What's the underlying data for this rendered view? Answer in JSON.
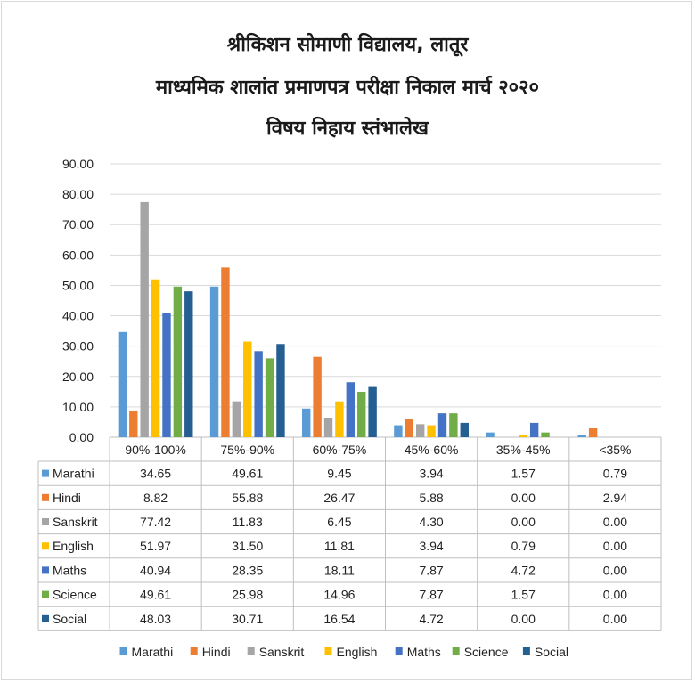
{
  "title_lines": [
    "श्रीकिशन सोमाणी विद्यालय, लातूर",
    "माध्यमिक शालांत प्रमाणपत्र परीक्षा निकाल मार्च २०२०",
    "विषय निहाय स्तंभालेख"
  ],
  "chart_data": {
    "type": "bar",
    "title": "श्रीकिशन सोमाणी विद्यालय, लातूर / माध्यमिक शालांत प्रमाणपत्र परीक्षा निकाल मार्च २०२० / विषय निहाय स्तंभालेख",
    "categories": [
      "90%-100%",
      "75%-90%",
      "60%-75%",
      "45%-60%",
      "35%-45%",
      "<35%"
    ],
    "series": [
      {
        "name": "Marathi",
        "color": "#5b9bd5",
        "values": [
          34.65,
          49.61,
          9.45,
          3.94,
          1.57,
          0.79
        ]
      },
      {
        "name": "Hindi",
        "color": "#ed7d31",
        "values": [
          8.82,
          55.88,
          26.47,
          5.88,
          0.0,
          2.94
        ]
      },
      {
        "name": "Sanskrit",
        "color": "#a5a5a5",
        "values": [
          77.42,
          11.83,
          6.45,
          4.3,
          0.0,
          0.0
        ]
      },
      {
        "name": "English",
        "color": "#ffc000",
        "values": [
          51.97,
          31.5,
          11.81,
          3.94,
          0.79,
          0.0
        ]
      },
      {
        "name": "Maths",
        "color": "#4472c4",
        "values": [
          40.94,
          28.35,
          18.11,
          7.87,
          4.72,
          0.0
        ]
      },
      {
        "name": "Science",
        "color": "#70ad47",
        "values": [
          49.61,
          25.98,
          14.96,
          7.87,
          1.57,
          0.0
        ]
      },
      {
        "name": "Social",
        "color": "#255e91",
        "values": [
          48.03,
          30.71,
          16.54,
          4.72,
          0.0,
          0.0
        ]
      }
    ],
    "ylim": [
      0,
      90
    ],
    "yticks": [
      "0.00",
      "10.00",
      "20.00",
      "30.00",
      "40.00",
      "50.00",
      "60.00",
      "70.00",
      "80.00",
      "90.00"
    ],
    "grid": true,
    "legend": "bottom",
    "data_table": true
  }
}
